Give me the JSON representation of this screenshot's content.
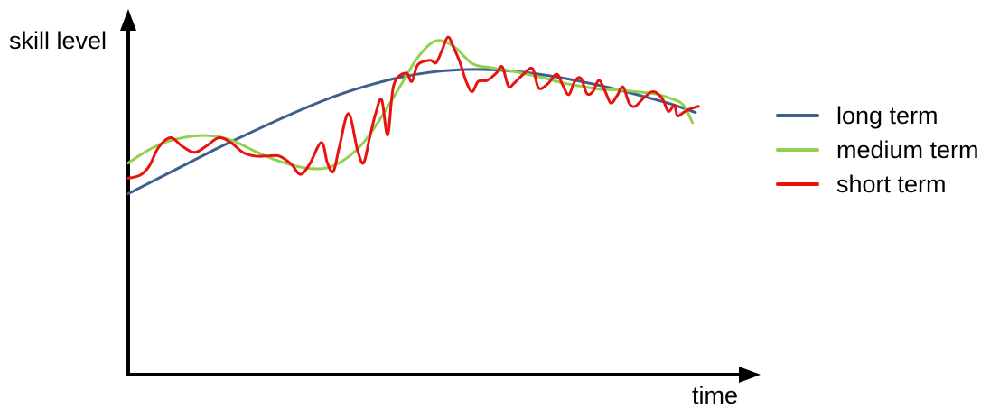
{
  "chart_data": {
    "type": "line",
    "title": "",
    "xlabel": "time",
    "ylabel": "skill level",
    "xlim": [
      0,
      100
    ],
    "ylim": [
      0,
      100
    ],
    "grid": false,
    "legend_position": "right",
    "series": [
      {
        "name": "long term",
        "color": "#3f5f8f",
        "points": [
          [
            0,
            49.5
          ],
          [
            5,
            53.7
          ],
          [
            10,
            57.9
          ],
          [
            15,
            62.1
          ],
          [
            20,
            66.0
          ],
          [
            25,
            69.8
          ],
          [
            30,
            73.4
          ],
          [
            35,
            76.6
          ],
          [
            40,
            79.2
          ],
          [
            45,
            81.3
          ],
          [
            50,
            82.7
          ],
          [
            55,
            83.4
          ],
          [
            60,
            83.4
          ],
          [
            65,
            82.8
          ],
          [
            70,
            81.7
          ],
          [
            75,
            80.2
          ],
          [
            80,
            78.4
          ],
          [
            85,
            76.3
          ],
          [
            90,
            74.0
          ],
          [
            94,
            71.7
          ]
        ]
      },
      {
        "name": "medium term",
        "color": "#92d050",
        "points": [
          [
            0,
            57.9
          ],
          [
            3,
            61.1
          ],
          [
            6,
            63.5
          ],
          [
            9,
            64.8
          ],
          [
            12,
            65.4
          ],
          [
            15,
            65.1
          ],
          [
            18,
            63.5
          ],
          [
            21,
            61.1
          ],
          [
            24,
            59.0
          ],
          [
            27,
            57.4
          ],
          [
            30,
            56.4
          ],
          [
            33,
            56.6
          ],
          [
            36,
            59.0
          ],
          [
            39,
            63.5
          ],
          [
            42,
            70.6
          ],
          [
            45,
            78.7
          ],
          [
            48,
            86.8
          ],
          [
            51,
            91.3
          ],
          [
            54,
            89.7
          ],
          [
            57,
            85.1
          ],
          [
            60,
            84.0
          ],
          [
            63,
            83.2
          ],
          [
            66,
            82.2
          ],
          [
            69,
            81.1
          ],
          [
            72,
            79.8
          ],
          [
            75,
            78.9
          ],
          [
            78,
            78.1
          ],
          [
            81,
            77.9
          ],
          [
            84,
            77.4
          ],
          [
            87,
            76.9
          ],
          [
            90,
            75.5
          ],
          [
            92,
            73.7
          ],
          [
            93.5,
            68.9
          ]
        ]
      },
      {
        "name": "short term",
        "color": "#e8120e",
        "points": [
          [
            0,
            53.7
          ],
          [
            2,
            54.6
          ],
          [
            3.5,
            57.1
          ],
          [
            5,
            62.1
          ],
          [
            7,
            64.8
          ],
          [
            9,
            62.4
          ],
          [
            11,
            60.8
          ],
          [
            13,
            62.6
          ],
          [
            15,
            64.8
          ],
          [
            17,
            63.5
          ],
          [
            19,
            60.8
          ],
          [
            21,
            59.8
          ],
          [
            23,
            59.8
          ],
          [
            25,
            59.8
          ],
          [
            27,
            57.6
          ],
          [
            28.5,
            54.8
          ],
          [
            30,
            57.4
          ],
          [
            32,
            63.5
          ],
          [
            33,
            57.9
          ],
          [
            34,
            55.6
          ],
          [
            35,
            62.4
          ],
          [
            36.5,
            71.4
          ],
          [
            38,
            61.4
          ],
          [
            39,
            57.9
          ],
          [
            40,
            64.8
          ],
          [
            41,
            71.4
          ],
          [
            42,
            75.2
          ],
          [
            43,
            65.6
          ],
          [
            44,
            79.2
          ],
          [
            46,
            82.5
          ],
          [
            47,
            80.2
          ],
          [
            48,
            84.8
          ],
          [
            50,
            86.0
          ],
          [
            51,
            85.3
          ],
          [
            52,
            88.7
          ],
          [
            53,
            92.3
          ],
          [
            54,
            89.2
          ],
          [
            55,
            85.3
          ],
          [
            56,
            80.2
          ],
          [
            57,
            77.4
          ],
          [
            58,
            80.2
          ],
          [
            59.5,
            80.5
          ],
          [
            61,
            82.5
          ],
          [
            62,
            84.2
          ],
          [
            63,
            78.9
          ],
          [
            64,
            79.8
          ],
          [
            65.5,
            82.2
          ],
          [
            67,
            83.7
          ],
          [
            68,
            78.4
          ],
          [
            69.5,
            79.5
          ],
          [
            71,
            82.2
          ],
          [
            72,
            79.2
          ],
          [
            73,
            76.6
          ],
          [
            74,
            80.2
          ],
          [
            75,
            81.1
          ],
          [
            76,
            76.9
          ],
          [
            77,
            77.4
          ],
          [
            78,
            80.5
          ],
          [
            79,
            77.6
          ],
          [
            80,
            74.3
          ],
          [
            81,
            76.3
          ],
          [
            82,
            78.7
          ],
          [
            83,
            74.3
          ],
          [
            84,
            73.4
          ],
          [
            85.5,
            75.8
          ],
          [
            87,
            77.4
          ],
          [
            88.5,
            75.5
          ],
          [
            89.5,
            72.0
          ],
          [
            90.5,
            73.7
          ],
          [
            91,
            70.8
          ],
          [
            92,
            71.7
          ],
          [
            93,
            72.6
          ],
          [
            94.5,
            73.4
          ]
        ]
      }
    ]
  }
}
